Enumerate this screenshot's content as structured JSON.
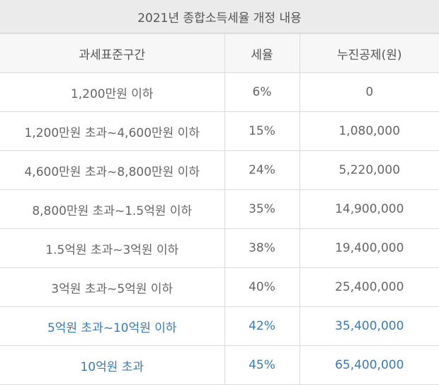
{
  "title": "2021년 종합소득세율 개정 내용",
  "headers": [
    "과세표준구간",
    "세율",
    "누진공제(원)"
  ],
  "rows": [
    {
      "bracket": "1,200만원 이하",
      "rate": "6%",
      "deduction": "0"
    },
    {
      "bracket": "1,200만원 초과~4,600만원 이하",
      "rate": "15%",
      "deduction": "1,080,000"
    },
    {
      "bracket": "4,600만원 초과~8,800만원 이하",
      "rate": "24%",
      "deduction": "5,220,000"
    },
    {
      "bracket": "8,800만원 초과~1.5억원 이하",
      "rate": "35%",
      "deduction": "14,900,000"
    },
    {
      "bracket": "1.5억원 초과~3억원 이하",
      "rate": "38%",
      "deduction": "19,400,000"
    },
    {
      "bracket": "3억원 초과~5억원 이하",
      "rate": "40%",
      "deduction": "25,400,000"
    },
    {
      "bracket": "5억원 초과~10억원 이하",
      "rate": "42%",
      "deduction": "35,400,000"
    },
    {
      "bracket": "10억원 초과",
      "rate": "45%",
      "deduction": "65,400,000"
    }
  ],
  "colors": {
    "highlight_text": "#3a7ab8",
    "header_bg": "#ebebeb"
  }
}
